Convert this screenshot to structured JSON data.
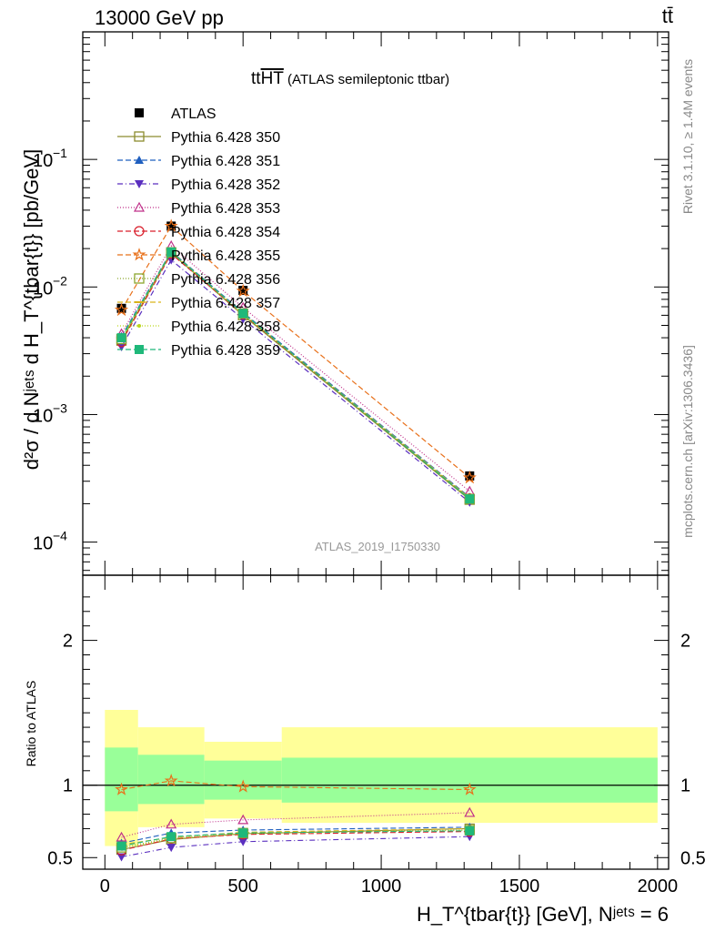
{
  "header": {
    "energy": "13000 GeV pp",
    "process": "tt̄"
  },
  "side": {
    "rivet": "Rivet 3.1.10, ≥ 1.4M events",
    "mcplots": "mcplots.cern.ch [arXiv:1306.3436]"
  },
  "chart_data": [
    {
      "type": "line",
      "title": "tt̄HT (ATLAS semileptonic ttbar)",
      "title_main": "tt",
      "title_over": "HT",
      "title_rest": " (ATLAS semileptonic ttbar)",
      "analysis": "ATLAS_2019_I1750330",
      "ylabel": "d²σ / d Nʲᵉᵗˢ d H_T^{tbar{t}} [pb/GeV]",
      "y_scale": "log",
      "ylim": [
        5.5e-05,
        1.0
      ],
      "xlim": [
        -80,
        2040
      ],
      "y_ticks": [
        {
          "v": 0.1,
          "label": "10",
          "exp": "−1"
        },
        {
          "v": 0.01,
          "label": "10",
          "exp": "−2"
        },
        {
          "v": 0.001,
          "label": "10",
          "exp": "−3"
        },
        {
          "v": 0.0001,
          "label": "10",
          "exp": "−4"
        }
      ],
      "legend_position": "top-left",
      "data_x": [
        60,
        240,
        500,
        1320
      ],
      "data_xerr": [
        [
          0,
          120
        ],
        [
          120,
          360
        ],
        [
          360,
          640
        ],
        [
          640,
          2000
        ]
      ],
      "data": {
        "name": "ATLAS",
        "values": [
          0.0068,
          0.03,
          0.0094,
          0.00033
        ]
      },
      "series": [
        {
          "name": "Pythia 6.428 350",
          "color": "#8c8c2e",
          "dash": "",
          "marker": "square-open",
          "values": [
            0.0038,
            0.0185,
            0.006,
            0.000215
          ]
        },
        {
          "name": "Pythia 6.428 351",
          "color": "#1f5fbf",
          "dash": "6,3",
          "marker": "triangle-up",
          "values": [
            0.0041,
            0.019,
            0.0063,
            0.000225
          ]
        },
        {
          "name": "Pythia 6.428 352",
          "color": "#5a2fbf",
          "dash": "6,3,1,3",
          "marker": "triangle-down",
          "values": [
            0.0034,
            0.0163,
            0.0056,
            0.000205
          ]
        },
        {
          "name": "Pythia 6.428 353",
          "color": "#c0308a",
          "dash": "1,2",
          "marker": "triangle-open",
          "values": [
            0.0043,
            0.021,
            0.0069,
            0.00025
          ]
        },
        {
          "name": "Pythia 6.428 354",
          "color": "#d91e2b",
          "dash": "6,3",
          "marker": "circle-open",
          "values": [
            0.0037,
            0.0182,
            0.0061,
            0.00022
          ]
        },
        {
          "name": "Pythia 6.428 355",
          "color": "#e8701a",
          "dash": "6,3",
          "marker": "star-open",
          "values": [
            0.0066,
            0.03,
            0.0093,
            0.00032
          ]
        },
        {
          "name": "Pythia 6.428 356",
          "color": "#8ca62e",
          "dash": "1,2",
          "marker": "square-open",
          "values": [
            0.0039,
            0.0187,
            0.0062,
            0.000218
          ]
        },
        {
          "name": "Pythia 6.428 357",
          "color": "#d9b31a",
          "dash": "6,3",
          "marker": "dash",
          "values": [
            0.004,
            0.0189,
            0.0062,
            0.000222
          ]
        },
        {
          "name": "Pythia 6.428 358",
          "color": "#bcd61a",
          "dash": "1,2",
          "marker": "dot",
          "values": [
            0.0038,
            0.0186,
            0.0061,
            0.00022
          ]
        },
        {
          "name": "Pythia 6.428 359",
          "color": "#1fb87a",
          "dash": "6,3",
          "marker": "square",
          "values": [
            0.004,
            0.0188,
            0.0062,
            0.000218
          ]
        }
      ]
    },
    {
      "type": "line",
      "ylabel": "Ratio to ATLAS",
      "xlabel": "H_T^{tbar{t}} [GeV], Nʲᵉᵗˢ = 6",
      "xlim": [
        -80,
        2040
      ],
      "ylim": [
        0.42,
        2.45
      ],
      "x_ticks": [
        0,
        500,
        1000,
        1500,
        2000
      ],
      "y_ticks": [
        0.5,
        1,
        2
      ],
      "bands": [
        {
          "x": [
            0,
            120
          ],
          "inner": [
            0.82,
            1.26
          ],
          "outer": [
            0.58,
            1.52
          ]
        },
        {
          "x": [
            120,
            360
          ],
          "inner": [
            0.87,
            1.21
          ],
          "outer": [
            0.71,
            1.4
          ]
        },
        {
          "x": [
            360,
            640
          ],
          "inner": [
            0.9,
            1.17
          ],
          "outer": [
            0.77,
            1.3
          ]
        },
        {
          "x": [
            640,
            2000
          ],
          "inner": [
            0.88,
            1.19
          ],
          "outer": [
            0.74,
            1.4
          ]
        }
      ],
      "ratios": [
        {
          "name": "Pythia 6.428 350",
          "values": [
            0.555,
            0.625,
            0.665,
            0.7
          ]
        },
        {
          "name": "Pythia 6.428 351",
          "values": [
            0.6,
            0.67,
            0.69,
            0.71
          ]
        },
        {
          "name": "Pythia 6.428 352",
          "values": [
            0.505,
            0.57,
            0.61,
            0.645
          ]
        },
        {
          "name": "Pythia 6.428 353",
          "values": [
            0.64,
            0.73,
            0.76,
            0.81
          ]
        },
        {
          "name": "Pythia 6.428 354",
          "values": [
            0.55,
            0.63,
            0.66,
            0.68
          ]
        },
        {
          "name": "Pythia 6.428 355",
          "values": [
            0.97,
            1.03,
            0.99,
            0.97
          ]
        },
        {
          "name": "Pythia 6.428 356",
          "values": [
            0.57,
            0.635,
            0.67,
            0.69
          ]
        },
        {
          "name": "Pythia 6.428 357",
          "values": [
            0.59,
            0.64,
            0.675,
            0.7
          ]
        },
        {
          "name": "Pythia 6.428 358",
          "values": [
            0.565,
            0.63,
            0.665,
            0.69
          ]
        },
        {
          "name": "Pythia 6.428 359",
          "values": [
            0.58,
            0.645,
            0.67,
            0.685
          ]
        }
      ]
    }
  ]
}
